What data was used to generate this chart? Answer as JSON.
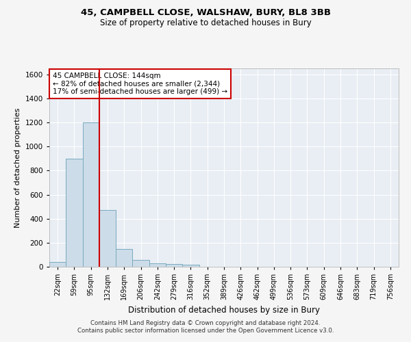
{
  "title_line1": "45, CAMPBELL CLOSE, WALSHAW, BURY, BL8 3BB",
  "title_line2": "Size of property relative to detached houses in Bury",
  "xlabel": "Distribution of detached houses by size in Bury",
  "ylabel": "Number of detached properties",
  "categories": [
    "22sqm",
    "59sqm",
    "95sqm",
    "132sqm",
    "169sqm",
    "206sqm",
    "242sqm",
    "279sqm",
    "316sqm",
    "352sqm",
    "389sqm",
    "426sqm",
    "462sqm",
    "499sqm",
    "536sqm",
    "573sqm",
    "609sqm",
    "646sqm",
    "683sqm",
    "719sqm",
    "756sqm"
  ],
  "values": [
    40,
    900,
    1200,
    470,
    150,
    55,
    30,
    20,
    15,
    0,
    0,
    0,
    0,
    0,
    0,
    0,
    0,
    0,
    0,
    0,
    0
  ],
  "bar_color": "#ccdce8",
  "bar_edge_color": "#7aaabf",
  "vline_color": "#cc0000",
  "vline_x_index": 3,
  "ylim": [
    0,
    1650
  ],
  "yticks": [
    0,
    200,
    400,
    600,
    800,
    1000,
    1200,
    1400,
    1600
  ],
  "annotation_line1": "45 CAMPBELL CLOSE: 144sqm",
  "annotation_line2": "← 82% of detached houses are smaller (2,344)",
  "annotation_line3": "17% of semi-detached houses are larger (499) →",
  "annotation_box_color": "#cc0000",
  "footer_line1": "Contains HM Land Registry data © Crown copyright and database right 2024.",
  "footer_line2": "Contains public sector information licensed under the Open Government Licence v3.0.",
  "plot_bg_color": "#e8eef4",
  "fig_bg_color": "#f5f5f5",
  "grid_color": "#ffffff"
}
